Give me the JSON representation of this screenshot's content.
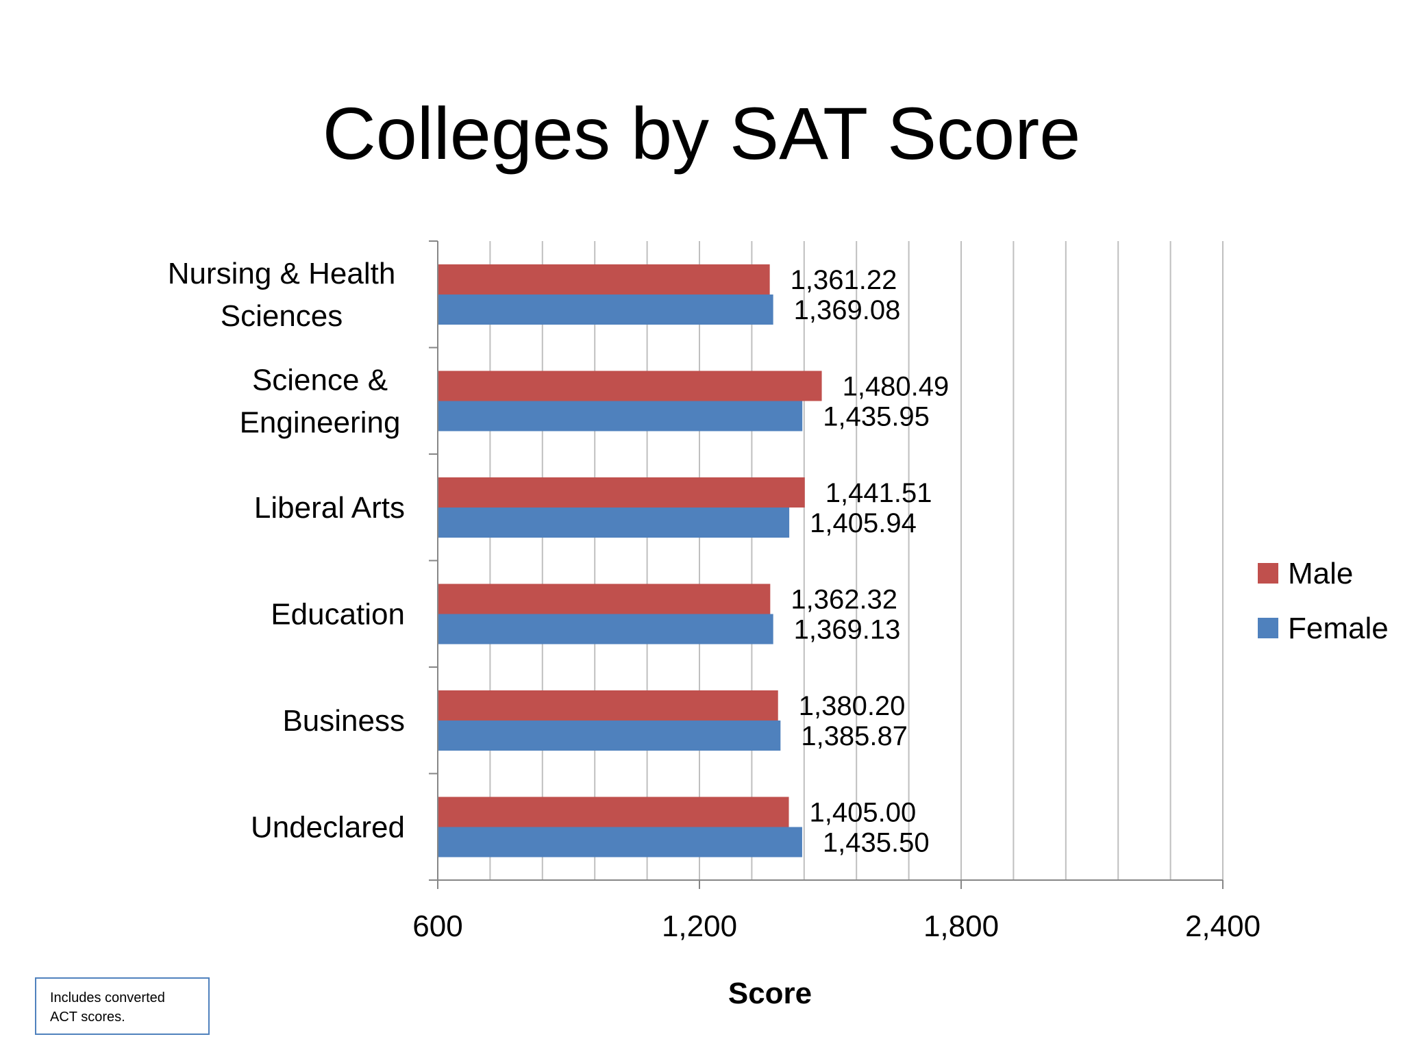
{
  "title": "Colleges by SAT Score",
  "note": "Includes converted ACT scores.",
  "chart_data": {
    "type": "bar",
    "orientation": "horizontal",
    "title": "Colleges by SAT Score",
    "xlabel": "Score",
    "ylabel": "",
    "xlim": [
      600,
      2400
    ],
    "xticks": [
      600,
      1200,
      1800,
      2400
    ],
    "xtick_labels": [
      "600",
      "1,200",
      "1,800",
      "2,400"
    ],
    "grid": true,
    "legend": "right",
    "categories": [
      "Nursing & Health Sciences",
      "Science & Engineering",
      "Liberal Arts",
      "Education",
      "Business",
      "Undeclared"
    ],
    "category_lines": [
      [
        "Nursing & Health",
        "Sciences"
      ],
      [
        "Science &",
        "Engineering"
      ],
      [
        "Liberal Arts"
      ],
      [
        "Education"
      ],
      [
        "Business"
      ],
      [
        "Undeclared"
      ]
    ],
    "series": [
      {
        "name": "Male",
        "color": "#C0504D",
        "values": [
          1361.22,
          1480.49,
          1441.51,
          1362.32,
          1380.2,
          1405.0
        ],
        "labels": [
          "1,361.22",
          "1,480.49",
          "1,441.51",
          "1,362.32",
          "1,380.20",
          "1,405.00"
        ]
      },
      {
        "name": "Female",
        "color": "#4F81BD",
        "values": [
          1369.08,
          1435.95,
          1405.94,
          1369.13,
          1385.87,
          1435.5
        ],
        "labels": [
          "1,369.08",
          "1,435.95",
          "1,405.94",
          "1,369.13",
          "1,385.87",
          "1,435.50"
        ]
      }
    ]
  }
}
